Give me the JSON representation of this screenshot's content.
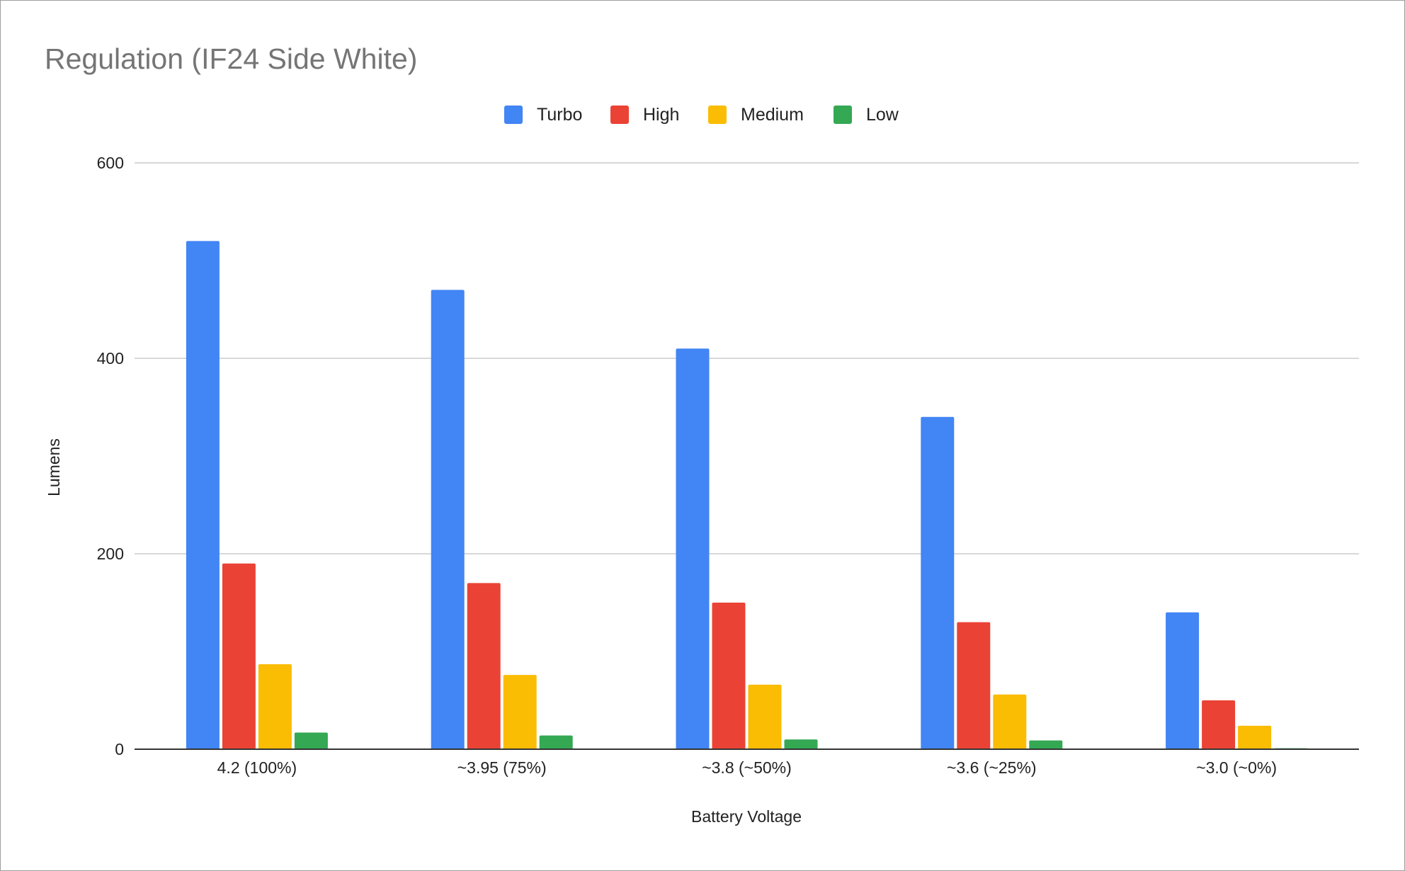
{
  "chart_data": {
    "type": "bar",
    "title": "Regulation (IF24 Side White)",
    "xlabel": "Battery Voltage",
    "ylabel": "Lumens",
    "categories": [
      "4.2 (100%)",
      "~3.95 (75%)",
      "~3.8 (~50%)",
      "~3.6 (~25%)",
      "~3.0 (~0%)"
    ],
    "ylim": [
      0,
      600
    ],
    "yticks": [
      0,
      200,
      400,
      600
    ],
    "grid": true,
    "legend": "top",
    "series": [
      {
        "name": "Turbo",
        "color": "#4285f4",
        "values": [
          520,
          470,
          410,
          340,
          140
        ]
      },
      {
        "name": "High",
        "color": "#ea4335",
        "values": [
          190,
          170,
          150,
          130,
          50
        ]
      },
      {
        "name": "Medium",
        "color": "#fbbc04",
        "values": [
          87,
          76,
          66,
          56,
          24
        ]
      },
      {
        "name": "Low",
        "color": "#34a853",
        "values": [
          17,
          14,
          10,
          9,
          1
        ]
      }
    ]
  }
}
